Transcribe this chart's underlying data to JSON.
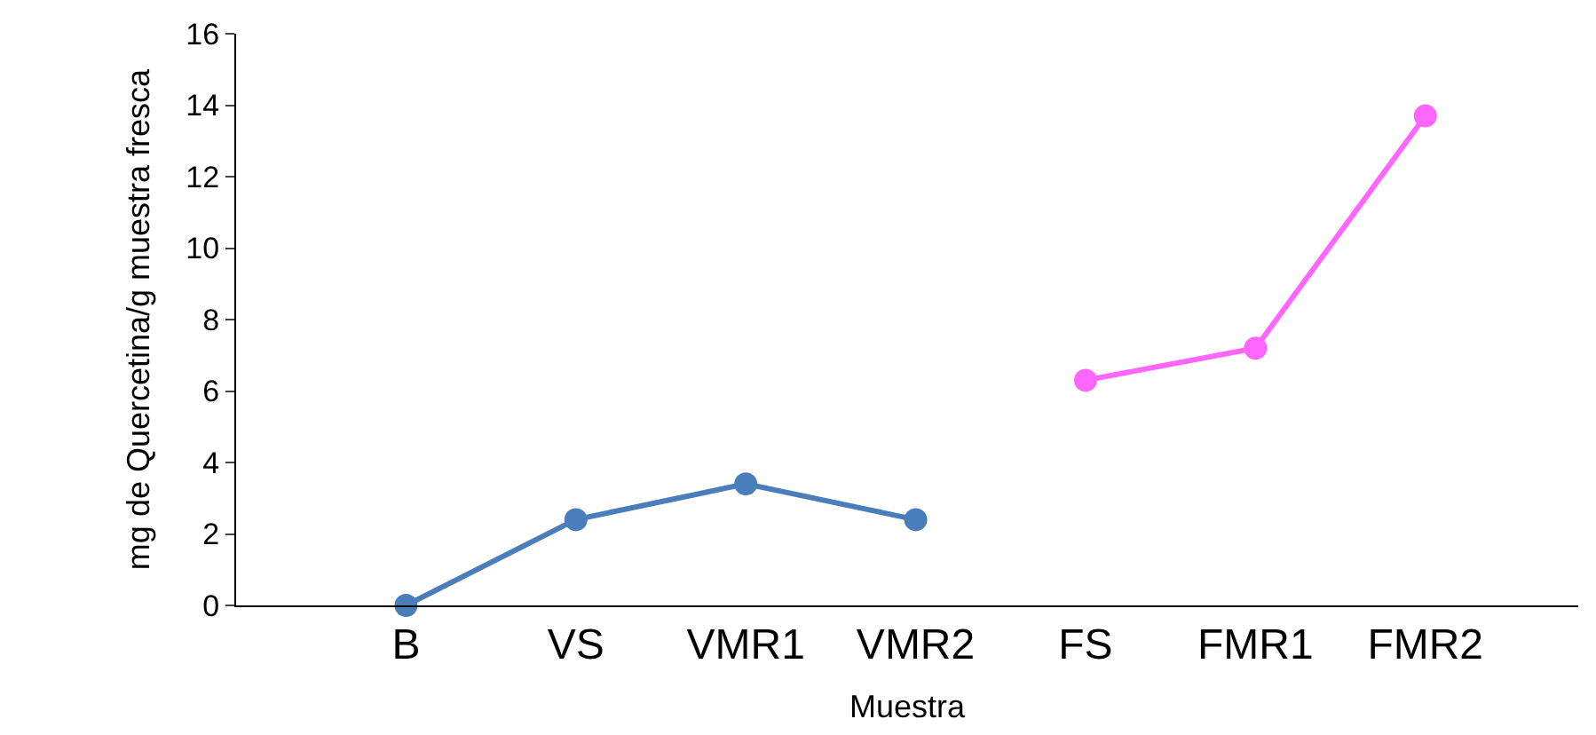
{
  "chart_data": {
    "type": "line",
    "xlabel": "Muestra",
    "ylabel": "mg de Quercetina/g muestra fresca",
    "categories": [
      "B",
      "VS",
      "VMR1",
      "VMR2",
      "FS",
      "FMR1",
      "FMR2"
    ],
    "series": [
      {
        "color": "#4a7ebb",
        "values": [
          0,
          2.4,
          3.4,
          2.4,
          null,
          null,
          null
        ]
      },
      {
        "color": "#ff66ff",
        "values": [
          null,
          null,
          null,
          null,
          6.3,
          7.2,
          13.7
        ]
      }
    ],
    "ylim": [
      0,
      16
    ],
    "yticks": [
      0,
      2,
      4,
      6,
      8,
      10,
      12,
      14,
      16
    ],
    "legend": false,
    "marker": "circle",
    "line_style": "solid"
  }
}
